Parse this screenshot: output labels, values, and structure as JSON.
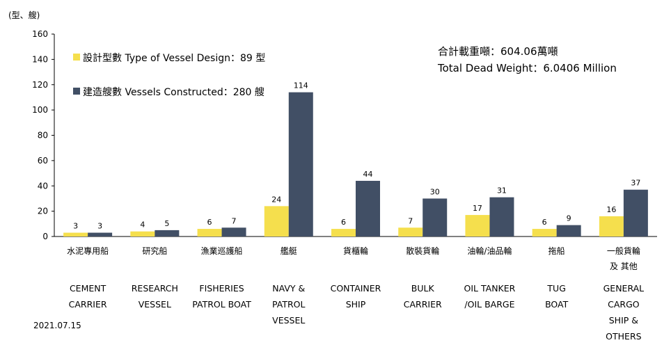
{
  "chart_data": {
    "type": "bar",
    "unit_label": "(型、艘)",
    "ylim": [
      0,
      160
    ],
    "yticks": [
      0,
      20,
      40,
      60,
      80,
      100,
      120,
      140,
      160
    ],
    "grid": false,
    "legend_position": "top-left",
    "categories": [
      {
        "zh": [
          "水泥專用船"
        ],
        "en": [
          "CEMENT",
          "CARRIER"
        ]
      },
      {
        "zh": [
          "研究船"
        ],
        "en": [
          "RESEARCH",
          "VESSEL"
        ]
      },
      {
        "zh": [
          "漁業巡護船"
        ],
        "en": [
          "FISHERIES",
          "PATROL BOAT"
        ]
      },
      {
        "zh": [
          "艦艇"
        ],
        "en": [
          "NAVY &",
          "PATROL",
          "VESSEL"
        ]
      },
      {
        "zh": [
          "貨櫃輪"
        ],
        "en": [
          "CONTAINER",
          "SHIP"
        ]
      },
      {
        "zh": [
          "散裝貨輪"
        ],
        "en": [
          "BULK",
          "CARRIER"
        ]
      },
      {
        "zh": [
          "油輪/油品輪"
        ],
        "en": [
          "OIL TANKER",
          "/OIL BARGE"
        ]
      },
      {
        "zh": [
          "拖船"
        ],
        "en": [
          "TUG",
          "BOAT"
        ]
      },
      {
        "zh": [
          "一般貨輪",
          "及 其他"
        ],
        "en": [
          "GENERAL",
          "CARGO",
          "SHIP &",
          "OTHERS"
        ]
      }
    ],
    "series": [
      {
        "name": "設計型數 Type of Vessel Design：89 型",
        "color": "#f5df4d",
        "values": [
          3,
          4,
          6,
          24,
          6,
          7,
          17,
          6,
          16
        ]
      },
      {
        "name": "建造艘數 Vessels Constructed：280 艘",
        "color": "#414f65",
        "values": [
          3,
          5,
          7,
          114,
          44,
          30,
          31,
          9,
          37
        ]
      }
    ],
    "annotations": [
      "合計載重噸：604.06萬噸",
      "Total Dead Weight：6.0406 Million"
    ],
    "date": "2021.07.15"
  }
}
